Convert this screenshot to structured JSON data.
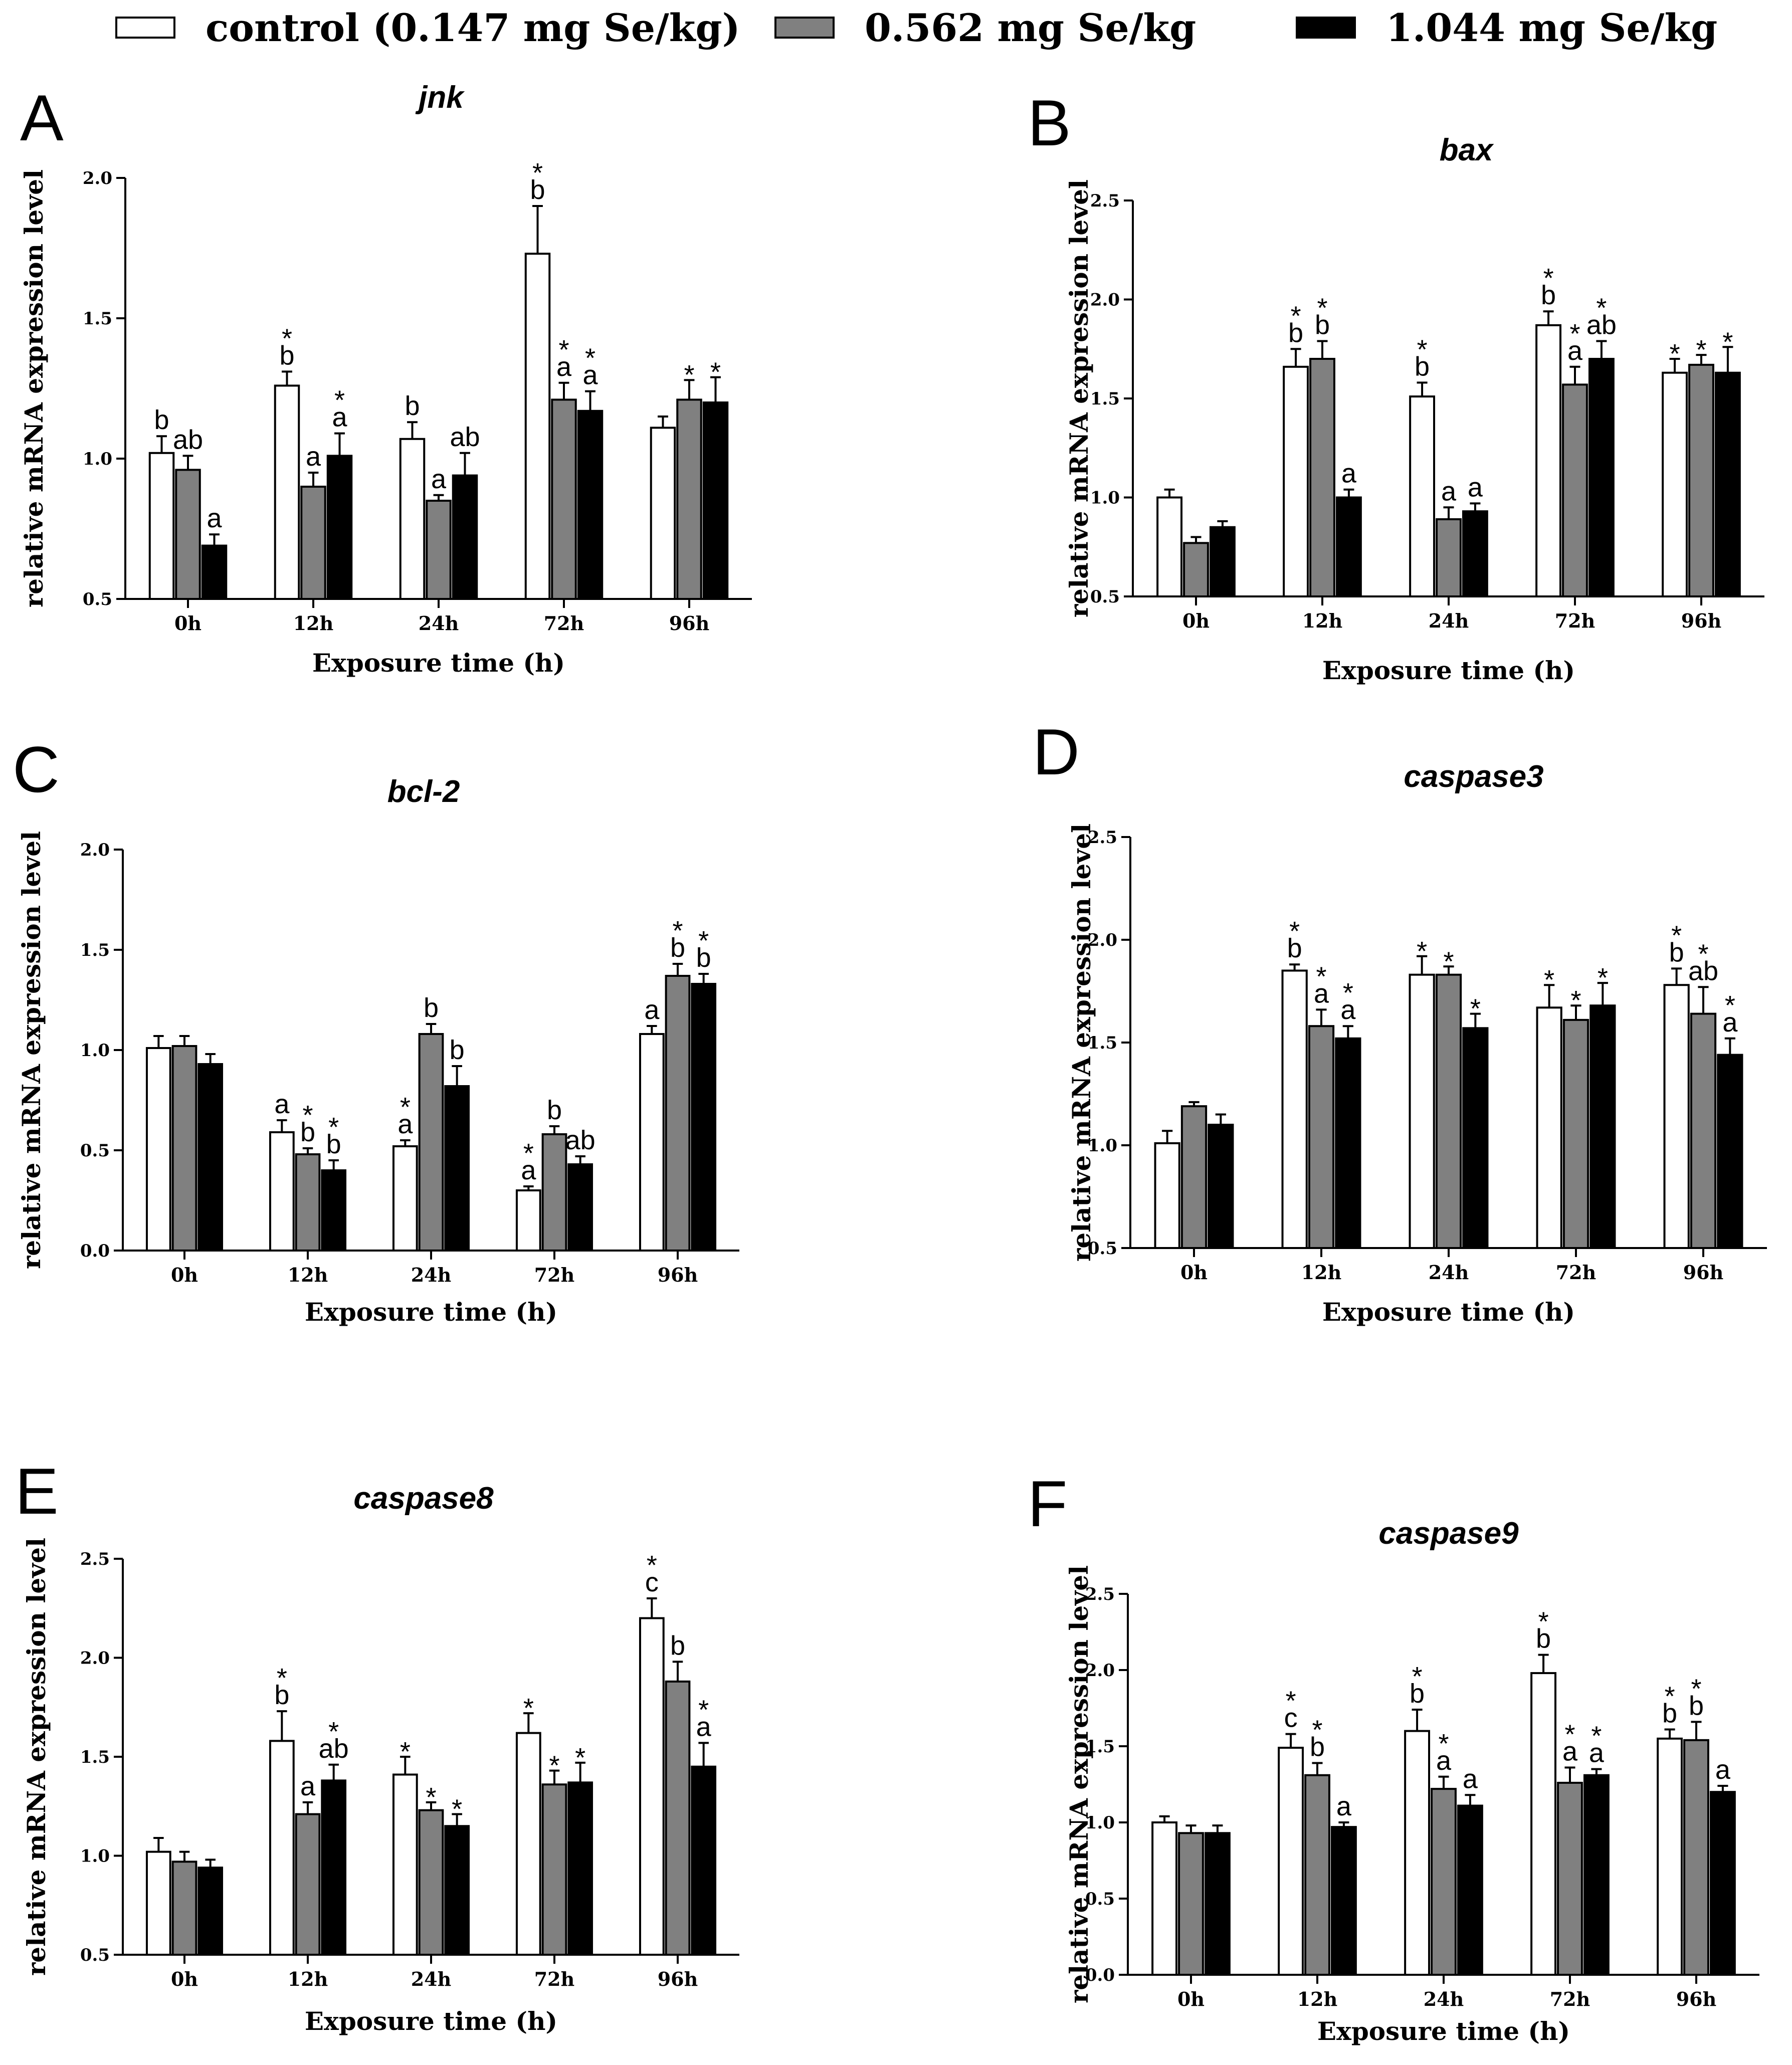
{
  "legend": [
    {
      "label": "control (0.147 mg Se/kg)",
      "color": "#ffffff"
    },
    {
      "label": "0.562 mg Se/kg",
      "color": "#808080"
    },
    {
      "label": "1.044 mg Se/kg",
      "color": "#000000"
    }
  ],
  "chart_data": [
    {
      "letter": "A",
      "type": "bar",
      "title": "jnk",
      "xlabel": "Exposure time (h)",
      "ylabel": "relative mRNA expression level",
      "ylim": [
        0.5,
        2.0
      ],
      "yticks": [
        "0.5",
        "1.0",
        "1.5",
        "2.0"
      ],
      "categories": [
        "0h",
        "12h",
        "24h",
        "72h",
        "96h"
      ],
      "series": [
        {
          "name": "control (0.147 mg Se/kg)",
          "values": [
            1.02,
            1.26,
            1.07,
            1.73,
            1.11
          ],
          "errors": [
            0.06,
            0.05,
            0.06,
            0.17,
            0.04
          ],
          "labels": [
            [
              "b"
            ],
            [
              "*",
              "b"
            ],
            [
              "b"
            ],
            [
              "*",
              "b"
            ],
            []
          ]
        },
        {
          "name": "0.562 mg Se/kg",
          "values": [
            0.96,
            0.9,
            0.85,
            1.21,
            1.21
          ],
          "errors": [
            0.05,
            0.05,
            0.02,
            0.06,
            0.07
          ],
          "labels": [
            [
              "ab"
            ],
            [
              "a"
            ],
            [
              "a"
            ],
            [
              "*",
              "a"
            ],
            [
              "*"
            ]
          ]
        },
        {
          "name": "1.044 mg Se/kg",
          "values": [
            0.69,
            1.01,
            0.94,
            1.17,
            1.2
          ],
          "errors": [
            0.04,
            0.08,
            0.08,
            0.07,
            0.09
          ],
          "labels": [
            [
              "a"
            ],
            [
              "*",
              "a"
            ],
            [
              "ab"
            ],
            [
              "*",
              "a"
            ],
            [
              "*"
            ]
          ]
        }
      ]
    },
    {
      "letter": "B",
      "type": "bar",
      "title": "bax",
      "xlabel": "Exposure time (h)",
      "ylabel": "relative mRNA expression level",
      "ylim": [
        0.5,
        2.5
      ],
      "yticks": [
        "0.5",
        "1.0",
        "1.5",
        "2.0",
        "2.5"
      ],
      "categories": [
        "0h",
        "12h",
        "24h",
        "72h",
        "96h"
      ],
      "series": [
        {
          "name": "control (0.147 mg Se/kg)",
          "values": [
            1.0,
            1.66,
            1.51,
            1.87,
            1.63
          ],
          "errors": [
            0.04,
            0.09,
            0.07,
            0.07,
            0.07
          ],
          "labels": [
            [],
            [
              "*",
              "b"
            ],
            [
              "*",
              "b"
            ],
            [
              "*",
              "b"
            ],
            [
              "*"
            ]
          ]
        },
        {
          "name": "0.562 mg Se/kg",
          "values": [
            0.77,
            1.7,
            0.89,
            1.57,
            1.67
          ],
          "errors": [
            0.03,
            0.09,
            0.06,
            0.09,
            0.05
          ],
          "labels": [
            [],
            [
              "*",
              "b"
            ],
            [
              "a"
            ],
            [
              "*",
              "a"
            ],
            [
              "*"
            ]
          ]
        },
        {
          "name": "1.044 mg Se/kg",
          "values": [
            0.85,
            1.0,
            0.93,
            1.7,
            1.63
          ],
          "errors": [
            0.03,
            0.04,
            0.04,
            0.09,
            0.13
          ],
          "labels": [
            [],
            [
              "a"
            ],
            [
              "a"
            ],
            [
              "*",
              "ab"
            ],
            [
              "*"
            ]
          ]
        }
      ]
    },
    {
      "letter": "C",
      "type": "bar",
      "title": "bcl-2",
      "xlabel": "Exposure time (h)",
      "ylabel": "relative mRNA expression level",
      "ylim": [
        0.0,
        2.0
      ],
      "yticks": [
        "0.0",
        "0.5",
        "1.0",
        "1.5",
        "2.0"
      ],
      "categories": [
        "0h",
        "12h",
        "24h",
        "72h",
        "96h"
      ],
      "series": [
        {
          "name": "control (0.147 mg Se/kg)",
          "values": [
            1.01,
            0.59,
            0.52,
            0.3,
            1.08
          ],
          "errors": [
            0.06,
            0.06,
            0.03,
            0.02,
            0.04
          ],
          "labels": [
            [],
            [
              "a"
            ],
            [
              "*",
              "a"
            ],
            [
              "*",
              "a"
            ],
            [
              "a"
            ]
          ]
        },
        {
          "name": "0.562 mg Se/kg",
          "values": [
            1.02,
            0.48,
            1.08,
            0.58,
            1.37
          ],
          "errors": [
            0.05,
            0.03,
            0.05,
            0.04,
            0.06
          ],
          "labels": [
            [],
            [
              "*",
              "b"
            ],
            [
              "b"
            ],
            [
              "b"
            ],
            [
              "*",
              "b"
            ]
          ]
        },
        {
          "name": "1.044 mg Se/kg",
          "values": [
            0.93,
            0.4,
            0.82,
            0.43,
            1.33
          ],
          "errors": [
            0.05,
            0.05,
            0.1,
            0.04,
            0.05
          ],
          "labels": [
            [],
            [
              "*",
              "b"
            ],
            [
              "b"
            ],
            [
              "ab"
            ],
            [
              "*",
              "b"
            ]
          ]
        }
      ]
    },
    {
      "letter": "D",
      "type": "bar",
      "title": "caspase3",
      "xlabel": "Exposure time (h)",
      "ylabel": "relative mRNA expression level",
      "ylim": [
        0.5,
        2.5
      ],
      "yticks": [
        "0.5",
        "1.0",
        "1.5",
        "2.0",
        "2.5"
      ],
      "categories": [
        "0h",
        "12h",
        "24h",
        "72h",
        "96h"
      ],
      "series": [
        {
          "name": "control (0.147 mg Se/kg)",
          "values": [
            1.01,
            1.85,
            1.83,
            1.67,
            1.78
          ],
          "errors": [
            0.06,
            0.03,
            0.09,
            0.11,
            0.08
          ],
          "labels": [
            [],
            [
              "*",
              "b"
            ],
            [
              "*"
            ],
            [
              "*"
            ],
            [
              "*",
              "b"
            ]
          ]
        },
        {
          "name": "0.562 mg Se/kg",
          "values": [
            1.19,
            1.58,
            1.83,
            1.61,
            1.64
          ],
          "errors": [
            0.02,
            0.08,
            0.04,
            0.07,
            0.13
          ],
          "labels": [
            [],
            [
              "*",
              "a"
            ],
            [
              "*"
            ],
            [
              "*"
            ],
            [
              "*",
              "ab"
            ]
          ]
        },
        {
          "name": "1.044 mg Se/kg",
          "values": [
            1.1,
            1.52,
            1.57,
            1.68,
            1.44
          ],
          "errors": [
            0.05,
            0.06,
            0.07,
            0.11,
            0.08
          ],
          "labels": [
            [],
            [
              "*",
              "a"
            ],
            [
              "*"
            ],
            [
              "*"
            ],
            [
              "*",
              "a"
            ]
          ]
        }
      ]
    },
    {
      "letter": "E",
      "type": "bar",
      "title": "caspase8",
      "xlabel": "Exposure time (h)",
      "ylabel": "relative mRNA expression level",
      "ylim": [
        0.5,
        2.5
      ],
      "yticks": [
        "0.5",
        "1.0",
        "1.5",
        "2.0",
        "2.5"
      ],
      "categories": [
        "0h",
        "12h",
        "24h",
        "72h",
        "96h"
      ],
      "series": [
        {
          "name": "control (0.147 mg Se/kg)",
          "values": [
            1.02,
            1.58,
            1.41,
            1.62,
            2.2
          ],
          "errors": [
            0.07,
            0.15,
            0.09,
            0.1,
            0.1
          ],
          "labels": [
            [],
            [
              "*",
              "b"
            ],
            [
              "*"
            ],
            [
              "*"
            ],
            [
              "*",
              "c"
            ]
          ]
        },
        {
          "name": "0.562 mg Se/kg",
          "values": [
            0.97,
            1.21,
            1.23,
            1.36,
            1.88
          ],
          "errors": [
            0.05,
            0.06,
            0.04,
            0.07,
            0.1
          ],
          "labels": [
            [],
            [
              "a"
            ],
            [
              "*"
            ],
            [
              "*"
            ],
            [
              "b"
            ]
          ]
        },
        {
          "name": "1.044 mg Se/kg",
          "values": [
            0.94,
            1.38,
            1.15,
            1.37,
            1.45
          ],
          "errors": [
            0.04,
            0.08,
            0.06,
            0.1,
            0.12
          ],
          "labels": [
            [],
            [
              "*",
              "ab"
            ],
            [
              "*"
            ],
            [
              "*"
            ],
            [
              "*",
              "a"
            ]
          ]
        }
      ]
    },
    {
      "letter": "F",
      "type": "bar",
      "title": "caspase9",
      "xlabel": "Exposure time (h)",
      "ylabel": "relative mRNA expression level",
      "ylim": [
        0.0,
        2.5
      ],
      "yticks": [
        "0.0",
        "0.5",
        "1.0",
        "1.5",
        "2.0",
        "2.5"
      ],
      "categories": [
        "0h",
        "12h",
        "24h",
        "72h",
        "96h"
      ],
      "series": [
        {
          "name": "control (0.147 mg Se/kg)",
          "values": [
            1.0,
            1.49,
            1.6,
            1.98,
            1.55
          ],
          "errors": [
            0.04,
            0.09,
            0.14,
            0.12,
            0.06
          ],
          "labels": [
            [],
            [
              "*",
              "c"
            ],
            [
              "*",
              "b"
            ],
            [
              "*",
              "b"
            ],
            [
              "*",
              "b"
            ]
          ]
        },
        {
          "name": "0.562 mg Se/kg",
          "values": [
            0.93,
            1.31,
            1.22,
            1.26,
            1.54
          ],
          "errors": [
            0.05,
            0.08,
            0.08,
            0.1,
            0.12
          ],
          "labels": [
            [],
            [
              "*",
              "b"
            ],
            [
              "*",
              "a"
            ],
            [
              "*",
              "a"
            ],
            [
              "*",
              "b"
            ]
          ]
        },
        {
          "name": "1.044 mg Se/kg",
          "values": [
            0.93,
            0.97,
            1.11,
            1.31,
            1.2
          ],
          "errors": [
            0.05,
            0.03,
            0.07,
            0.04,
            0.04
          ],
          "labels": [
            [],
            [
              "a"
            ],
            [
              "a"
            ],
            [
              "*",
              "a"
            ],
            [
              "a"
            ]
          ]
        }
      ]
    }
  ]
}
